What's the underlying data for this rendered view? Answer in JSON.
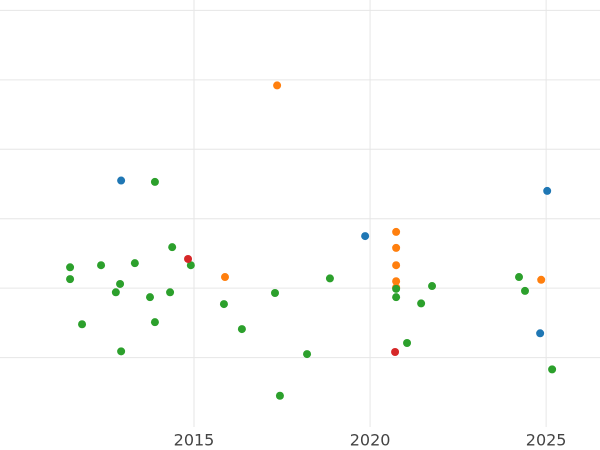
{
  "chart_data": {
    "type": "scatter",
    "grid": true,
    "xlim": [
      2009.49,
      2026.53
    ],
    "xticks": [
      2015,
      2020,
      2025
    ],
    "ylim": [
      0,
      6.15
    ],
    "yticks": [
      1,
      2,
      3,
      4,
      5,
      6
    ],
    "series": [
      {
        "color": "#1f77b4",
        "x": [
          2012.93,
          2025.03,
          2019.86,
          2024.83
        ],
        "values": [
          3.55,
          3.4,
          2.75,
          1.35
        ]
      },
      {
        "color": "#ff7f0e",
        "x": [
          2017.36,
          2020.74,
          2020.74,
          2020.74,
          2020.74,
          2020.74,
          2015.88,
          2024.86
        ],
        "values": [
          4.92,
          2.81,
          2.58,
          2.33,
          2.1,
          2.01,
          2.16,
          2.12
        ]
      },
      {
        "color": "#2ca02c",
        "x": [
          2013.89,
          2014.38,
          2011.48,
          2011.48,
          2012.36,
          2013.32,
          2014.91,
          2012.9,
          2012.78,
          2013.75,
          2014.32,
          2015.85,
          2017.3,
          2018.86,
          2020.74,
          2020.74,
          2021.76,
          2021.45,
          2024.23,
          2024.4,
          2011.82,
          2013.89,
          2016.36,
          2012.93,
          2018.21,
          2021.05,
          2017.44,
          2025.17
        ],
        "values": [
          3.53,
          2.59,
          2.3,
          2.13,
          2.33,
          2.36,
          2.33,
          2.06,
          1.94,
          1.87,
          1.94,
          1.77,
          1.93,
          2.14,
          1.99,
          1.87,
          2.03,
          1.78,
          2.16,
          1.96,
          1.48,
          1.51,
          1.41,
          1.09,
          1.05,
          1.21,
          0.45,
          0.83
        ]
      },
      {
        "color": "#d62728",
        "x": [
          2014.83,
          2020.71
        ],
        "values": [
          2.42,
          1.08
        ]
      }
    ]
  }
}
